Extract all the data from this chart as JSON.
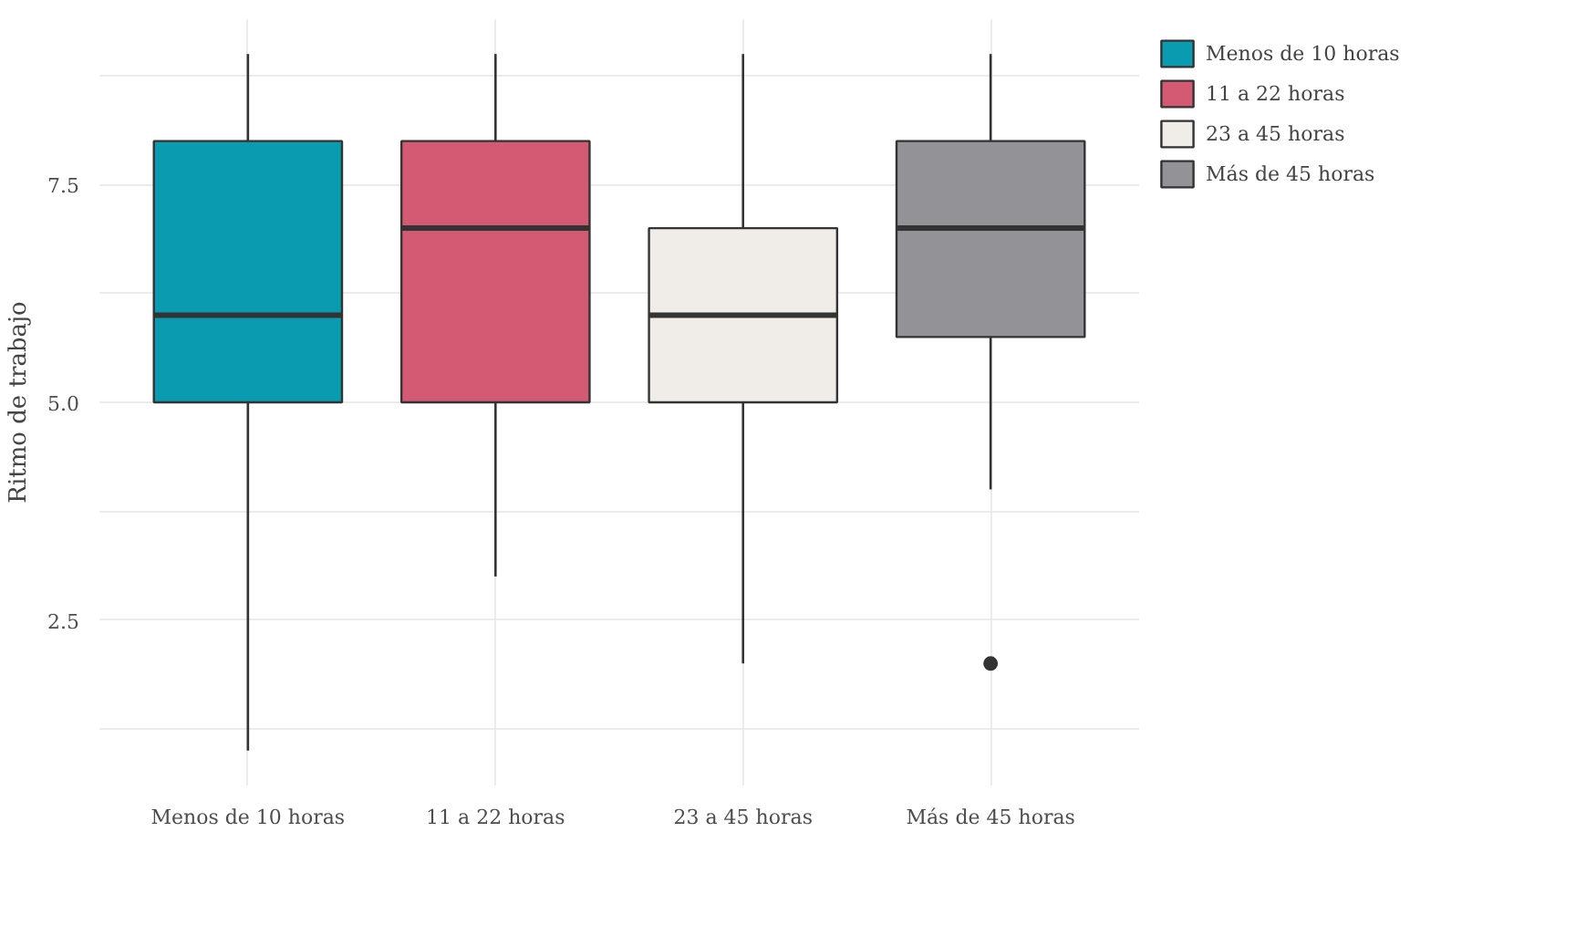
{
  "chart_data": {
    "type": "box",
    "ylabel": "Ritmo de trabajo",
    "categories": [
      "Menos de 10 horas",
      "11 a 22 horas",
      "23 a 45 horas",
      "Más de 45 horas"
    ],
    "series": [
      {
        "name": "Menos de 10 horas",
        "color": "#0a9bb0",
        "boxes": [
          {
            "low": 1,
            "q1": 5,
            "median": 6,
            "q3": 8,
            "high": 9
          },
          null,
          null,
          null
        ]
      },
      {
        "name": "11 a 22 horas",
        "color": "#d45a74",
        "boxes": [
          null,
          {
            "low": 3,
            "q1": 5,
            "median": 7,
            "q3": 8,
            "high": 9
          },
          null,
          null
        ]
      },
      {
        "name": "23 a 45 horas",
        "color": "#f0ede8",
        "boxes": [
          null,
          null,
          {
            "low": 2,
            "q1": 5,
            "median": 6,
            "q3": 7,
            "high": 9
          },
          null
        ]
      },
      {
        "name": "Más de 45 horas",
        "color": "#939296",
        "boxes": [
          null,
          null,
          null,
          {
            "low": 4,
            "q1": 5.75,
            "median": 7,
            "q3": 8,
            "high": 9,
            "outliers": [
              2
            ]
          }
        ]
      }
    ],
    "ylim": [
      0.6,
      9.4
    ],
    "yticks": [
      {
        "value": 1.25,
        "label": null
      },
      {
        "value": 2.5,
        "label": "2.5"
      },
      {
        "value": 3.75,
        "label": null
      },
      {
        "value": 5,
        "label": "5.0"
      },
      {
        "value": 6.25,
        "label": null
      },
      {
        "value": 7.5,
        "label": "7.5"
      },
      {
        "value": 8.75,
        "label": null
      }
    ],
    "grid": true,
    "legend": "right"
  }
}
